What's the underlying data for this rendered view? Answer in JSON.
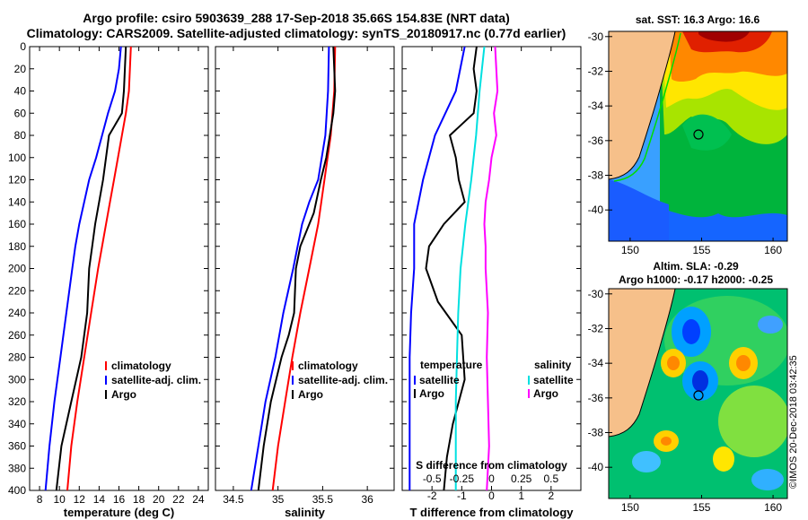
{
  "title_line1": "Argo profile: csiro 5903639_288 17-Sep-2018 35.66S 154.83E (NRT data)",
  "title_line2": "Climatology: CARS2009. Satellite-adjusted climatology: synTS_20180917.nc (0.77d earlier)",
  "timestamp": "©IMOS 20-Dec-2018 03:42:35",
  "colors": {
    "climatology": "#ff0000",
    "satellite": "#0000ff",
    "argo": "#000000",
    "sat_diff": "#00e0e0",
    "sal_diff": "#ff00ff"
  },
  "chart_data": [
    {
      "type": "line",
      "name": "temperature",
      "xlabel": "temperature (deg C)",
      "ylabel": "",
      "xlim": [
        7,
        25
      ],
      "ylim": [
        400,
        0
      ],
      "x_ticks": [
        "8",
        "10",
        "12",
        "14",
        "16",
        "18",
        "20",
        "22",
        "24"
      ],
      "y_ticks": [
        "0",
        "20",
        "40",
        "60",
        "80",
        "100",
        "120",
        "140",
        "160",
        "180",
        "200",
        "220",
        "240",
        "260",
        "280",
        "300",
        "320",
        "340",
        "360",
        "380",
        "400"
      ],
      "legend": [
        "climatology",
        "satellite-adj. clim.",
        "Argo"
      ],
      "series": [
        {
          "name": "climatology",
          "depth": [
            0,
            20,
            40,
            60,
            80,
            100,
            120,
            140,
            160,
            180,
            200,
            240,
            280,
            320,
            360,
            400
          ],
          "values": [
            17.2,
            17.1,
            17.0,
            16.7,
            16.3,
            15.9,
            15.5,
            15.1,
            14.7,
            14.3,
            13.9,
            13.2,
            12.5,
            11.8,
            11.2,
            10.8
          ]
        },
        {
          "name": "satellite-adj. clim.",
          "depth": [
            0,
            20,
            40,
            60,
            80,
            100,
            120,
            140,
            160,
            180,
            200,
            240,
            280,
            320,
            360,
            400
          ],
          "values": [
            16.2,
            16.0,
            15.6,
            14.9,
            14.3,
            13.7,
            13.0,
            12.5,
            12.0,
            11.6,
            11.3,
            10.7,
            10.1,
            9.5,
            9.0,
            8.6
          ]
        },
        {
          "name": "Argo",
          "depth": [
            0,
            20,
            40,
            60,
            80,
            100,
            120,
            140,
            160,
            180,
            200,
            240,
            280,
            320,
            360,
            400
          ],
          "values": [
            16.7,
            16.6,
            16.5,
            16.3,
            15.0,
            14.7,
            14.4,
            14.0,
            13.6,
            13.3,
            13.0,
            12.8,
            12.2,
            11.2,
            10.2,
            9.7
          ]
        }
      ]
    },
    {
      "type": "line",
      "name": "salinity",
      "xlabel": "salinity",
      "ylabel": "",
      "xlim": [
        34.3,
        36.3
      ],
      "ylim": [
        400,
        0
      ],
      "x_ticks": [
        "34.5",
        "35",
        "35.5",
        "36"
      ],
      "legend": [
        "climatology",
        "satellite-adj. clim.",
        "Argo"
      ],
      "series": [
        {
          "name": "climatology",
          "depth": [
            0,
            40,
            80,
            120,
            160,
            200,
            240,
            280,
            320,
            360,
            400
          ],
          "values": [
            35.64,
            35.63,
            35.59,
            35.52,
            35.45,
            35.35,
            35.25,
            35.16,
            35.08,
            35.0,
            34.94
          ]
        },
        {
          "name": "satellite-adj. clim.",
          "depth": [
            0,
            40,
            80,
            120,
            140,
            160,
            180,
            200,
            240,
            280,
            320,
            360,
            400
          ],
          "values": [
            35.57,
            35.56,
            35.53,
            35.45,
            35.35,
            35.27,
            35.22,
            35.17,
            35.06,
            34.97,
            34.86,
            34.78,
            34.7
          ]
        },
        {
          "name": "Argo",
          "depth": [
            0,
            40,
            60,
            80,
            100,
            120,
            150,
            180,
            200,
            240,
            260,
            280,
            320,
            360,
            400
          ],
          "values": [
            35.62,
            35.64,
            35.62,
            35.58,
            35.54,
            35.48,
            35.4,
            35.25,
            35.2,
            35.18,
            35.12,
            35.04,
            34.92,
            34.84,
            34.78
          ]
        }
      ]
    },
    {
      "type": "line",
      "name": "difference",
      "xlabel": "T difference from climatology",
      "x2label": "S difference from climatology",
      "xlim": [
        -3,
        3
      ],
      "ylim": [
        400,
        0
      ],
      "x_ticks": [
        "-2",
        "-1",
        "0",
        "1",
        "2"
      ],
      "x2_ticks": [
        "-0.5",
        "-0.25",
        "0",
        "0.25",
        "0.5"
      ],
      "legend_temperature": {
        "title": "temperature",
        "items": [
          "satellite",
          "Argo"
        ]
      },
      "legend_salinity": {
        "title": "salinity",
        "items": [
          "satellite",
          "Argo"
        ]
      },
      "series": [
        {
          "name": "temperature satellite",
          "depth": [
            0,
            40,
            80,
            120,
            160,
            200,
            240,
            280,
            320,
            360,
            400
          ],
          "values": [
            -0.9,
            -1.2,
            -1.9,
            -2.3,
            -2.6,
            -2.6,
            -2.7,
            -2.75,
            -2.75,
            -2.75,
            -2.75
          ]
        },
        {
          "name": "temperature Argo",
          "depth": [
            0,
            20,
            40,
            60,
            80,
            100,
            120,
            140,
            160,
            180,
            200,
            230,
            260,
            300,
            340,
            370,
            400
          ],
          "values": [
            -0.5,
            -0.6,
            -0.5,
            -0.6,
            -1.4,
            -1.2,
            -1.1,
            -0.9,
            -1.6,
            -2.1,
            -2.2,
            -1.8,
            -1.0,
            -0.9,
            -1.3,
            -1.5,
            -1.6
          ]
        },
        {
          "name": "salinity satellite",
          "depth": [
            0,
            40,
            80,
            120,
            160,
            200,
            240,
            280,
            320,
            360,
            400
          ],
          "values": [
            -0.06,
            -0.1,
            -0.13,
            -0.17,
            -0.22,
            -0.26,
            -0.28,
            -0.29,
            -0.3,
            -0.3,
            -0.3
          ]
        },
        {
          "name": "salinity Argo",
          "depth": [
            0,
            40,
            60,
            80,
            100,
            120,
            140,
            160,
            180,
            200,
            240,
            280,
            320,
            360,
            400
          ],
          "values": [
            0.03,
            0.05,
            0.02,
            0.04,
            0.0,
            -0.02,
            -0.05,
            -0.06,
            -0.05,
            -0.05,
            -0.03,
            -0.04,
            -0.03,
            -0.02,
            -0.04
          ]
        }
      ]
    },
    {
      "type": "heatmap",
      "name": "sst-map",
      "title": "sat. SST: 16.3 Argo: 16.6",
      "x_ticks": [
        "150",
        "155",
        "160"
      ],
      "y_ticks": [
        "-30",
        "-32",
        "-34",
        "-36",
        "-38",
        "-40"
      ]
    },
    {
      "type": "heatmap",
      "name": "sla-map",
      "title": "Altim. SLA: -0.29",
      "subtitle": "Argo h1000: -0.17 h2000: -0.25",
      "x_ticks": [
        "150",
        "155",
        "160"
      ],
      "y_ticks": [
        "-30",
        "-32",
        "-34",
        "-36",
        "-38",
        "-40"
      ]
    }
  ]
}
